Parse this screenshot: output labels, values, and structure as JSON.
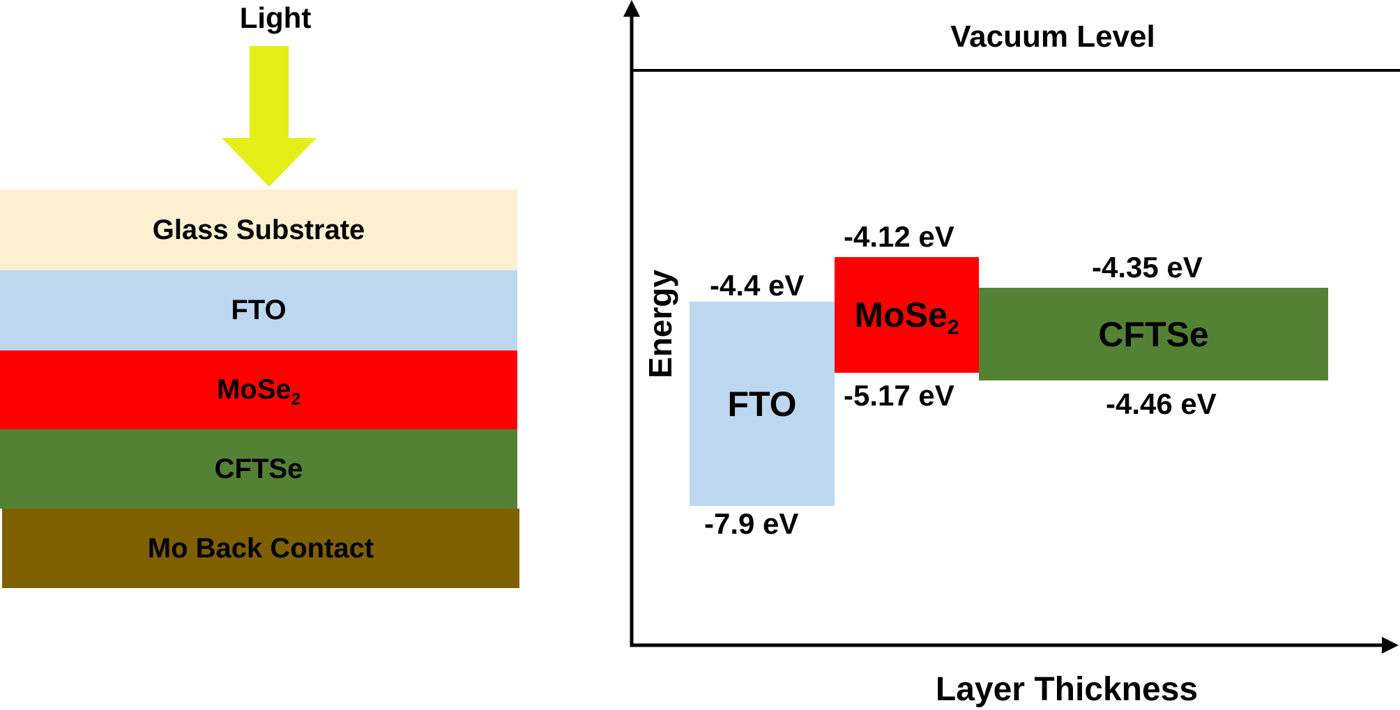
{
  "light": {
    "label": "Light",
    "arrow_color": "#e6ee17"
  },
  "stack": {
    "layers": [
      {
        "name": "Glass Substrate",
        "color": "#fdf0d0"
      },
      {
        "name": "FTO",
        "color": "#bcd7ef"
      },
      {
        "name_main": "MoSe",
        "name_sub": "2",
        "color": "#ff0000"
      },
      {
        "name": "CFTSe",
        "color": "#548235"
      },
      {
        "name": "Mo Back Contact",
        "color": "#7f6000"
      }
    ]
  },
  "energy_diagram": {
    "vacuum_label": "Vacuum Level",
    "y_axis_label": "Energy",
    "x_axis_label": "Layer Thickness",
    "bands": {
      "fto": {
        "label": "FTO",
        "top": "-4.4 eV",
        "bottom": "-7.9 eV",
        "color": "#bcd7ef"
      },
      "mose2": {
        "label_main": "MoSe",
        "label_sub": "2",
        "top": "-4.12 eV",
        "bottom": "-5.17 eV",
        "color": "#ff0000"
      },
      "cftse": {
        "label": "CFTSe",
        "top": "-4.35 eV",
        "bottom": "-4.46 eV",
        "color": "#548235"
      }
    }
  }
}
